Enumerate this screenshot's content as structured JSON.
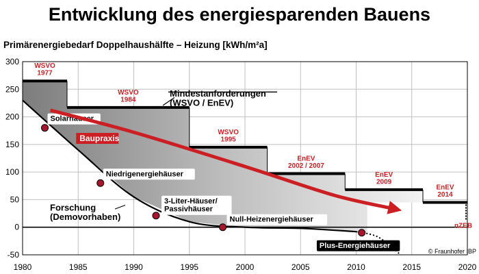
{
  "chart_data": {
    "type": "step-line",
    "title": "Entwicklung des energiesparenden Bauens",
    "subtitle": "Primärenergiebedarf Doppelhaushälfte – Heizung [kWh/m²a]",
    "credit": "© Fraunhofer IBP",
    "x_ticks": [
      1980,
      1985,
      1990,
      1995,
      2000,
      2005,
      2010,
      2015,
      2020
    ],
    "y_ticks": [
      -50,
      0,
      50,
      100,
      150,
      200,
      250,
      300
    ],
    "xlim": [
      1980,
      2020
    ],
    "ylim": [
      -50,
      300
    ],
    "grid": true,
    "requirements": {
      "label": "Mindestanforderungen\n(WSVO / EnEV)",
      "steps": [
        {
          "from": 1980,
          "to": 1984,
          "value": 265,
          "label": "WSVO\n1977"
        },
        {
          "from": 1984,
          "to": 1995,
          "value": 217,
          "label": "WSVO\n1984"
        },
        {
          "from": 1995,
          "to": 2002,
          "value": 145,
          "label": "WSVO\n1995"
        },
        {
          "from": 2002,
          "to": 2009,
          "value": 97,
          "label": "EnEV\n2002 / 2007"
        },
        {
          "from": 2009,
          "to": 2016,
          "value": 68,
          "label": "EnEV\n2009"
        },
        {
          "from": 2016,
          "to": 2020,
          "value": 45,
          "label": "EnEV\n2014"
        }
      ],
      "end_label": "nZEB"
    },
    "research": {
      "label": "Forschung\n(Demovorhaben)",
      "curve": [
        {
          "x": 1980,
          "y": 230
        },
        {
          "x": 1985,
          "y": 140
        },
        {
          "x": 1990,
          "y": 55
        },
        {
          "x": 1995,
          "y": 10
        },
        {
          "x": 2000,
          "y": 0
        },
        {
          "x": 2005,
          "y": -2
        },
        {
          "x": 2010,
          "y": -8
        },
        {
          "x": 2012,
          "y": -18
        },
        {
          "x": 2014,
          "y": -50
        }
      ],
      "milestones": [
        {
          "label": "Solarhäuser",
          "x": 1982,
          "y": 180
        },
        {
          "label": "Niedrigenergiehäuser",
          "x": 1987,
          "y": 80
        },
        {
          "label": "3-Liter-Häuser/\nPassivhäuser",
          "x": 1992,
          "y": 21
        },
        {
          "label": "Null-Heizenergiehäuser",
          "x": 1998,
          "y": 0
        },
        {
          "label": "Plus-Energiehäuser",
          "x": 2010.5,
          "y": -10
        }
      ]
    },
    "practice": {
      "label": "Baupraxis",
      "curve": [
        {
          "x": 1982.5,
          "y": 212
        },
        {
          "x": 1990,
          "y": 172
        },
        {
          "x": 2000,
          "y": 110
        },
        {
          "x": 2008,
          "y": 58
        },
        {
          "x": 2013.5,
          "y": 33
        }
      ]
    },
    "colors": {
      "accent": "#cc1f24",
      "axis": "#000000",
      "grid": "#bfbfbf",
      "band_dark": "#888888",
      "band_light": "#ffffff"
    }
  }
}
